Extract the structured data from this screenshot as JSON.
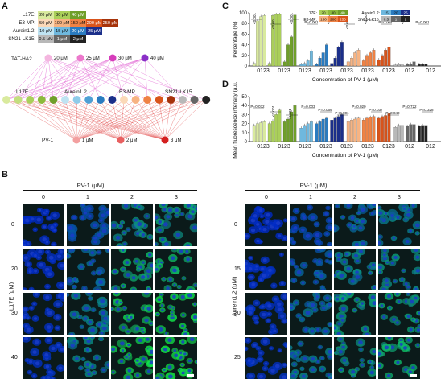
{
  "panels": {
    "A": "A",
    "B": "B",
    "C": "C",
    "D": "D"
  },
  "legendA": {
    "rows": [
      {
        "label": "L17E:",
        "cells": [
          "20 μM",
          "30 μM",
          "40 μM"
        ],
        "colors": [
          "#d9ea9e",
          "#aacf5a",
          "#6f9f2a"
        ]
      },
      {
        "label": "E3-MP:",
        "cells": [
          "50 μM",
          "100 μM",
          "150 μM",
          "200 μM",
          "250 μM"
        ],
        "colors": [
          "#fbd9b8",
          "#f7b382",
          "#ef8244",
          "#d9541b",
          "#a6330b"
        ]
      },
      {
        "label": "Aurein1.2:",
        "cells": [
          "10 μM",
          "15 μM",
          "20 μM",
          "25 μM"
        ],
        "colors": [
          "#bfe3f2",
          "#6fb8de",
          "#2a7bc0",
          "#1b2f8a"
        ]
      },
      {
        "label": "SN21-LK15:",
        "cells": [
          "0.5 μM",
          "1 μM",
          "2 μM"
        ],
        "colors": [
          "#b8b8b8",
          "#666666",
          "#222222"
        ]
      }
    ]
  },
  "network": {
    "top_labels": [
      "TAT-HA2",
      "20 μM",
      "25 μM",
      "30 μM",
      "40 μM"
    ],
    "mid_labels": [
      "L17E",
      "Aurein1.2",
      "E3-MP",
      "SN21-LK15"
    ],
    "bottom_labels": [
      "PV-1",
      "1 μM",
      "2 μM",
      "3 μM"
    ]
  },
  "chartC": {
    "ylabel": "Percentage (%)",
    "xlabel": "Concentration of PV-1 (μM)",
    "yticks": [
      "0",
      "20",
      "40",
      "60",
      "80",
      "100"
    ],
    "xgroups": [
      "0123",
      "0123",
      "0123",
      "0123",
      "0123",
      "0123",
      "0123",
      "012",
      "012"
    ],
    "pvals": [
      "<0.001",
      "<0.001",
      "<0.001",
      "P=0.001",
      "<0.001",
      "<0.001",
      "<0.001",
      "P=0.004",
      "<0.001",
      "P=0.001"
    ],
    "legend": {
      "L17E:": [
        "20",
        "30",
        "40"
      ],
      "E3-MP:": [
        "150",
        "200",
        "250"
      ],
      "Aurein1.2:": [
        "15",
        "20",
        "25"
      ],
      "SN21-LK15:": [
        "0.5",
        "1",
        "2"
      ]
    }
  },
  "chartD": {
    "ylabel": "Mean fluorescence intensity (a.u.)",
    "xlabel": "Concentration of PV-1 (μM)",
    "yticks": [
      "0",
      "10",
      "20",
      "30",
      "40",
      "50"
    ],
    "xgroups": [
      "0123",
      "0123",
      "0123",
      "0123",
      "0123",
      "0123",
      "0123",
      "012",
      "012"
    ],
    "pvals": [
      "P=0.032",
      "<0.001",
      "<0.001",
      "P=0.003",
      "P=0.069",
      "P<0.001",
      "P=0.020",
      "P=0.037",
      "P=0.040",
      "P=0.722",
      "P=0.328"
    ]
  },
  "chart_data": [
    {
      "type": "bar",
      "ylabel": "Percentage (%)",
      "xlabel": "Concentration of PV-1 (μM)",
      "ylim": [
        0,
        100
      ],
      "groups": [
        {
          "name": "L17E 20",
          "values": [
            5,
            85,
            93,
            95
          ],
          "color": "#d9ea9e"
        },
        {
          "name": "L17E 30",
          "values": [
            5,
            95,
            97,
            97
          ],
          "color": "#aacf5a"
        },
        {
          "name": "L17E 40",
          "values": [
            8,
            40,
            55,
            96
          ],
          "color": "#6f9f2a"
        },
        {
          "name": "Aurein1.2 15",
          "values": [
            3,
            5,
            10,
            28
          ],
          "color": "#6fb8de"
        },
        {
          "name": "Aurein1.2 20",
          "values": [
            3,
            15,
            25,
            40
          ],
          "color": "#2a7bc0"
        },
        {
          "name": "Aurein1.2 25",
          "values": [
            5,
            15,
            35,
            45
          ],
          "color": "#1b2f8a"
        },
        {
          "name": "E3-MP 150",
          "values": [
            8,
            15,
            25,
            30
          ],
          "color": "#f7b382"
        },
        {
          "name": "E3-MP 200",
          "values": [
            10,
            20,
            25,
            30
          ],
          "color": "#ef8244"
        },
        {
          "name": "E3-MP 250",
          "values": [
            12,
            20,
            30,
            35
          ],
          "color": "#d9541b"
        },
        {
          "name": "SN21-LK15 0.5",
          "values": [
            2,
            3,
            4
          ],
          "color": "#b8b8b8"
        },
        {
          "name": "SN21-LK15 1",
          "values": [
            3,
            4,
            8
          ],
          "color": "#666666"
        },
        {
          "name": "SN21-LK15 2",
          "values": [
            3,
            3,
            4
          ],
          "color": "#222222"
        }
      ]
    },
    {
      "type": "bar",
      "ylabel": "Mean fluorescence intensity (a.u.)",
      "xlabel": "Concentration of PV-1 (μM)",
      "ylim": [
        0,
        50
      ],
      "groups": [
        {
          "name": "L17E 20",
          "values": [
            18,
            20,
            21,
            22
          ],
          "color": "#d9ea9e"
        },
        {
          "name": "L17E 30",
          "values": [
            20,
            23,
            30,
            35
          ],
          "color": "#aacf5a"
        },
        {
          "name": "L17E 40",
          "values": [
            22,
            25,
            33,
            40
          ],
          "color": "#6f9f2a"
        },
        {
          "name": "Aurein1.2 15",
          "values": [
            15,
            18,
            20,
            22
          ],
          "color": "#6fb8de"
        },
        {
          "name": "Aurein1.2 20",
          "values": [
            20,
            22,
            25,
            26
          ],
          "color": "#2a7bc0"
        },
        {
          "name": "Aurein1.2 25",
          "values": [
            24,
            26,
            28,
            30
          ],
          "color": "#1b2f8a"
        },
        {
          "name": "E3-MP 150",
          "values": [
            22,
            24,
            25,
            26
          ],
          "color": "#f7b382"
        },
        {
          "name": "E3-MP 200",
          "values": [
            24,
            26,
            27,
            28
          ],
          "color": "#ef8244"
        },
        {
          "name": "E3-MP 250",
          "values": [
            26,
            28,
            29,
            31
          ],
          "color": "#d9541b"
        },
        {
          "name": "SN21-LK15 0.5",
          "values": [
            16,
            18,
            18
          ],
          "color": "#b8b8b8"
        },
        {
          "name": "SN21-LK15 1",
          "values": [
            17,
            19,
            19
          ],
          "color": "#666666"
        },
        {
          "name": "SN21-LK15 2",
          "values": [
            17,
            18,
            18
          ],
          "color": "#222222"
        }
      ]
    }
  ],
  "microscopy": {
    "left": {
      "header": "PV-1 (μM)",
      "cols": [
        "0",
        "1",
        "2",
        "3"
      ],
      "rows": [
        "0",
        "20",
        "30",
        "40"
      ],
      "ylabel": "L17E (μM)",
      "intensity": [
        [
          0.02,
          0.25,
          0.55,
          0.6
        ],
        [
          0.03,
          0.35,
          0.7,
          0.75
        ],
        [
          0.05,
          0.45,
          0.85,
          0.9
        ],
        [
          0.05,
          0.5,
          0.9,
          0.95
        ]
      ]
    },
    "right": {
      "header": "PV-1 (μM)",
      "cols": [
        "0",
        "1",
        "2",
        "3"
      ],
      "rows": [
        "0",
        "15",
        "20",
        "25"
      ],
      "ylabel": "Aurein1.2 (μM)",
      "intensity": [
        [
          0.02,
          0.2,
          0.4,
          0.45
        ],
        [
          0.04,
          0.3,
          0.5,
          0.55
        ],
        [
          0.05,
          0.4,
          0.6,
          0.65
        ],
        [
          0.06,
          0.45,
          0.6,
          0.7
        ]
      ]
    }
  }
}
